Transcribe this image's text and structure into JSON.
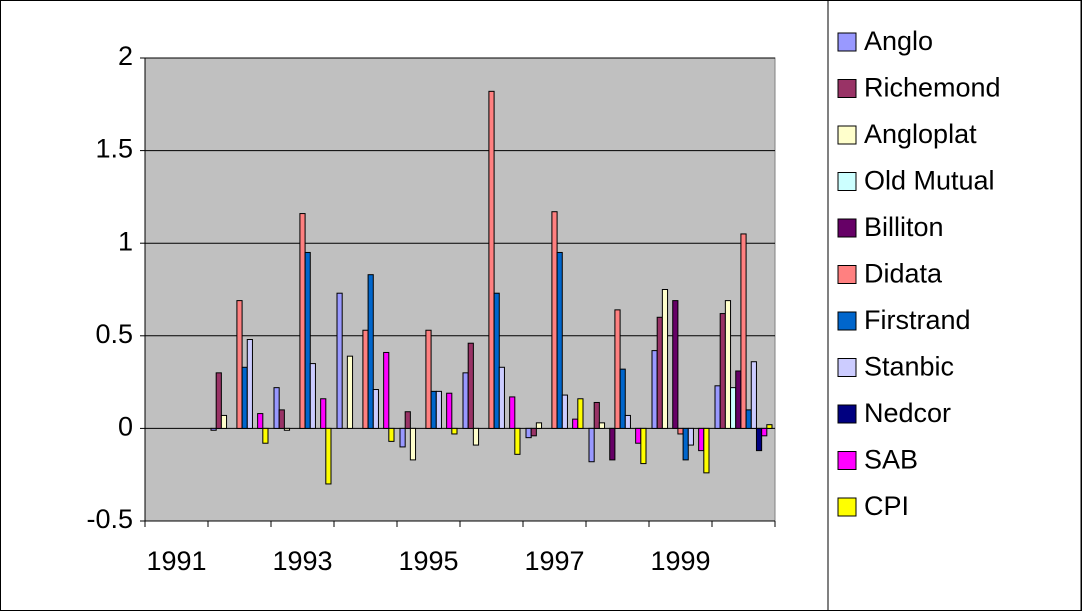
{
  "chart_data": {
    "type": "bar",
    "categories": [
      "1991",
      null,
      "1993",
      null,
      "1995",
      null,
      "1997",
      null,
      "1999",
      null
    ],
    "series": [
      {
        "name": "Anglo",
        "color": "#9999ff",
        "values": [
          null,
          -0.01,
          0.22,
          0.73,
          -0.1,
          0.3,
          -0.05,
          -0.18,
          0.42,
          0.23
        ]
      },
      {
        "name": "Richemond",
        "color": "#993366",
        "values": [
          null,
          0.3,
          0.1,
          null,
          0.09,
          0.46,
          -0.04,
          0.14,
          0.6,
          0.62
        ]
      },
      {
        "name": "Angloplat",
        "color": "#ffffcc",
        "values": [
          null,
          0.07,
          -0.01,
          0.39,
          -0.17,
          -0.09,
          0.03,
          0.03,
          0.75,
          0.69
        ]
      },
      {
        "name": "Old Mutual",
        "color": "#ccffff",
        "values": [
          null,
          null,
          null,
          null,
          null,
          null,
          null,
          null,
          null,
          0.22
        ]
      },
      {
        "name": "Billiton",
        "color": "#660066",
        "values": [
          null,
          null,
          null,
          null,
          null,
          null,
          null,
          -0.17,
          0.69,
          0.31
        ]
      },
      {
        "name": "Didata",
        "color": "#ff8080",
        "values": [
          null,
          0.69,
          1.16,
          0.53,
          0.53,
          1.82,
          1.17,
          0.64,
          -0.03,
          1.05
        ]
      },
      {
        "name": "Firstrand",
        "color": "#0066cc",
        "values": [
          null,
          0.33,
          0.95,
          0.83,
          0.2,
          0.73,
          0.95,
          0.32,
          -0.17,
          0.1
        ]
      },
      {
        "name": "Stanbic",
        "color": "#ccccff",
        "values": [
          null,
          0.48,
          0.35,
          0.21,
          0.2,
          0.33,
          0.18,
          0.07,
          -0.09,
          0.36
        ]
      },
      {
        "name": "Nedcor",
        "color": "#000080",
        "values": [
          null,
          null,
          null,
          null,
          null,
          null,
          null,
          null,
          null,
          -0.12
        ]
      },
      {
        "name": "SAB",
        "color": "#ff00ff",
        "values": [
          null,
          0.08,
          0.16,
          0.41,
          0.19,
          0.17,
          0.05,
          -0.08,
          -0.12,
          -0.04
        ]
      },
      {
        "name": "CPI",
        "color": "#ffff00",
        "values": [
          null,
          -0.08,
          -0.3,
          -0.07,
          -0.03,
          -0.14,
          0.16,
          -0.19,
          -0.24,
          0.02
        ]
      }
    ],
    "ylim": [
      -0.5,
      2
    ],
    "yticks": [
      -0.5,
      0,
      0.5,
      1,
      1.5,
      2
    ],
    "grid": true,
    "legend": "right"
  }
}
